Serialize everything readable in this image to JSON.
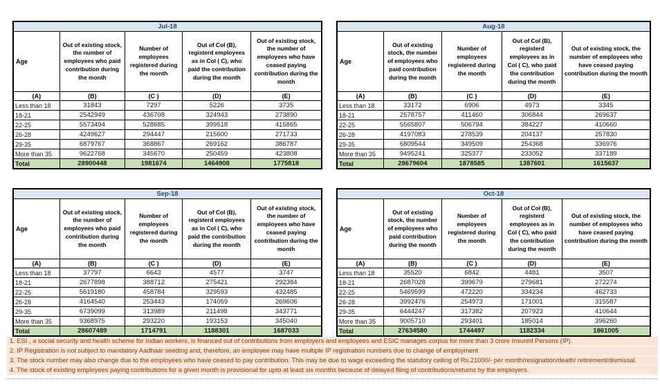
{
  "report": {
    "column_headers": {
      "age": "Age",
      "b": "Out of existing stock, the number of employees who paid contribution during the month",
      "c": "Number of employees registered during the month",
      "d": "Out of Col (B), registerd employees as in Col ( C), who paid the contribution during the month",
      "e": "Out of existing stock, the number of employees who have ceased paying contribution during the month"
    },
    "letter_row": [
      "(A)",
      "(B)",
      "(C )",
      "(D)",
      "(E)"
    ],
    "tables": [
      {
        "title": "Jul-18",
        "variant": "left",
        "rows": [
          [
            "Less than 18",
            "31843",
            "7297",
            "5226",
            "3735"
          ],
          [
            "18-21",
            "2542949",
            "436708",
            "324943",
            "273890"
          ],
          [
            "22-25",
            "5573494",
            "528685",
            "399518",
            "415865"
          ],
          [
            "26-28",
            "4249627",
            "294447",
            "215600",
            "271733"
          ],
          [
            "29-35",
            "6879767",
            "368867",
            "269162",
            "386787"
          ],
          [
            "More than 35",
            "9622768",
            "345670",
            "250459",
            "423808"
          ]
        ],
        "total": [
          "Total",
          "28900448",
          "1981674",
          "1464908",
          "1775818"
        ]
      },
      {
        "title": "Aug-18",
        "variant": "right",
        "rows": [
          [
            "Less than 18",
            "33172",
            "6906",
            "4973",
            "3345"
          ],
          [
            "18-21",
            "2578757",
            "411460",
            "306844",
            "269637"
          ],
          [
            "22-25",
            "5565807",
            "506794",
            "384227",
            "410660"
          ],
          [
            "26-28",
            "4197083",
            "278539",
            "204137",
            "257830"
          ],
          [
            "29-35",
            "6809544",
            "349509",
            "254368",
            "336976"
          ],
          [
            "More than 35",
            "9495241",
            "325377",
            "233052",
            "337189"
          ]
        ],
        "total": [
          "Total",
          "28679604",
          "1878585",
          "1387601",
          "1615637"
        ]
      },
      {
        "title": "Sep-18",
        "variant": "left",
        "rows": [
          [
            "Less than 18",
            "37797",
            "6643",
            "4577",
            "3747"
          ],
          [
            "18-21",
            "2677898",
            "388712",
            "275421",
            "292384"
          ],
          [
            "22-25",
            "5619180",
            "458784",
            "329593",
            "432485"
          ],
          [
            "26-28",
            "4164540",
            "253443",
            "174059",
            "269606"
          ],
          [
            "29-35",
            "6739099",
            "313989",
            "211498",
            "343771"
          ],
          [
            "More than 35",
            "9368975",
            "293220",
            "193153",
            "345040"
          ]
        ],
        "total": [
          "Total",
          "28607489",
          "1714791",
          "1188301",
          "1687033"
        ]
      },
      {
        "title": "Oct-18",
        "variant": "right",
        "rows": [
          [
            "Less than 18",
            "35520",
            "6842",
            "4481",
            "3507"
          ],
          [
            "18-21",
            "2687028",
            "399679",
            "279681",
            "272274"
          ],
          [
            "22-25",
            "5469599",
            "472220",
            "334234",
            "462733"
          ],
          [
            "26-28",
            "3992476",
            "254973",
            "171001",
            "315587"
          ],
          [
            "29-35",
            "6444247",
            "317382",
            "207923",
            "410644"
          ],
          [
            "More than 35",
            "9005710",
            "293401",
            "185014",
            "396260"
          ]
        ],
        "total": [
          "Total",
          "27634580",
          "1744497",
          "1182334",
          "1861005"
        ]
      }
    ],
    "footnotes": [
      "1. ESI , a social security and health scheme for Indian workers, is financed out of contributions from employers and employees and ESIC manages corpus for more than 3 crore Insured Persons (IP).",
      "2. IP Registration is not subject to mandatory Aadhaar seeding and, therefore, an employee may have multiple IP registration numbers due to change of employment",
      "3. The stock number may also change due to the employees who have ceased to pay contribution. This may be due to wage exceeding the statutory ceiling of Rs.21000/- per month/resignation/death/ retirement/dismissal.",
      "4. The stock of existing employees paying contributions for a given month is provisional for upto at least six months because of delayed filing of contributions/returns by the employers."
    ],
    "colors": {
      "month_band_bg": "#DCE6F1",
      "month_title_text": "#1F4E79",
      "total_row_bg": "#C6E0B4",
      "footnote_bg": "#FCE4D6",
      "footnote_text": "#833C00",
      "table_border": "#000000"
    }
  }
}
